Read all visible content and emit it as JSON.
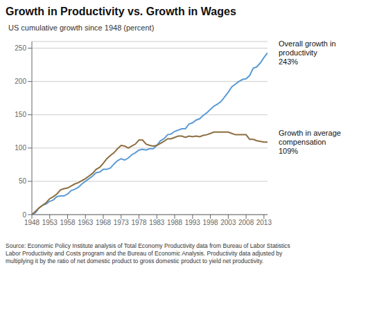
{
  "chart_data": {
    "type": "line",
    "title": "Growth in Productivity vs. Growth in Wages",
    "ylabel": "US cumulative growth since 1948 (percent)",
    "x": [
      1948,
      1949,
      1950,
      1951,
      1952,
      1953,
      1954,
      1955,
      1956,
      1957,
      1958,
      1959,
      1960,
      1961,
      1962,
      1963,
      1964,
      1965,
      1966,
      1967,
      1968,
      1969,
      1970,
      1971,
      1972,
      1973,
      1974,
      1975,
      1976,
      1977,
      1978,
      1979,
      1980,
      1981,
      1982,
      1983,
      1984,
      1985,
      1986,
      1987,
      1988,
      1989,
      1990,
      1991,
      1992,
      1993,
      1994,
      1995,
      1996,
      1997,
      1998,
      1999,
      2000,
      2001,
      2002,
      2003,
      2004,
      2005,
      2006,
      2007,
      2008,
      2009,
      2010,
      2011,
      2012,
      2013,
      2014
    ],
    "series": [
      {
        "color": "#5b9bd5",
        "values": [
          0,
          3,
          10,
          14,
          16,
          20,
          22,
          27,
          28,
          28,
          31,
          36,
          38,
          41,
          46,
          50,
          54,
          58,
          63,
          64,
          68,
          68,
          70,
          76,
          81,
          84,
          82,
          85,
          90,
          93,
          97,
          98,
          97,
          99,
          99,
          104,
          111,
          114,
          120,
          121,
          125,
          127,
          129,
          129,
          136,
          138,
          142,
          144,
          149,
          153,
          158,
          163,
          166,
          170,
          177,
          184,
          192,
          196,
          200,
          203,
          204,
          209,
          220,
          222,
          228,
          236,
          243
        ]
      },
      {
        "color": "#8c6d3f",
        "values": [
          0,
          5,
          10,
          14,
          18,
          24,
          27,
          31,
          37,
          39,
          40,
          43,
          46,
          48,
          51,
          54,
          58,
          62,
          68,
          71,
          77,
          84,
          89,
          93,
          99,
          104,
          103,
          100,
          103,
          106,
          112,
          112,
          106,
          104,
          103,
          104,
          107,
          110,
          114,
          114,
          116,
          118,
          118,
          116,
          118,
          117,
          118,
          117,
          119,
          120,
          122,
          124,
          124,
          124,
          124,
          124,
          122,
          120,
          120,
          120,
          120,
          113,
          113,
          111,
          110,
          109,
          109
        ]
      }
    ],
    "annotations": [
      "Overall growth in\nproductivity\n243%",
      "Growth in average\ncompensation\n109%"
    ],
    "source": "Source: Economic Policy Institute analysis of Total Economy Productivity data from Bureau of Labor Statistics\nLabor Productivity and Costs program and the Bureau of Economic Analysis. Productivity data adjusted by\nmultiplying it by the ratio of net domestic product to gross domestic product to yield net productivity.",
    "xlim": [
      1948,
      2014
    ],
    "xticks": [
      1948,
      1953,
      1958,
      1963,
      1968,
      1973,
      1978,
      1983,
      1988,
      1993,
      1998,
      2003,
      2008,
      2013
    ],
    "ylim": [
      0,
      260
    ],
    "yticks": [
      0,
      50,
      100,
      150,
      200,
      250
    ],
    "grid": true
  }
}
